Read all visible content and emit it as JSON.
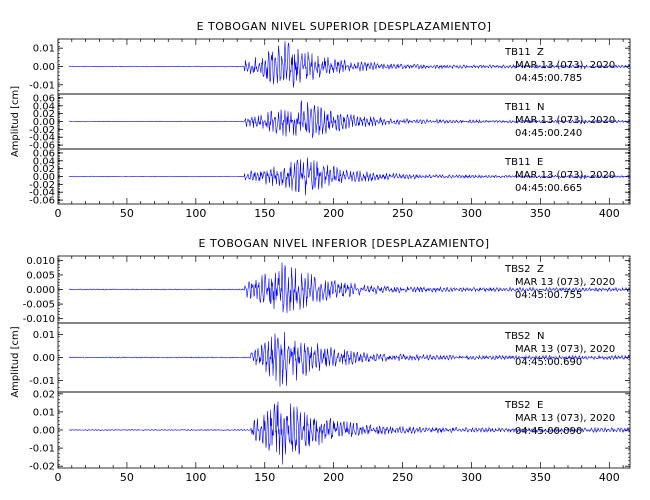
{
  "chart_data": [
    {
      "type": "line",
      "title": "E TOBOGAN NIVEL SUPERIOR [DESPLAZAMIENTO]",
      "ylabel": "Amplitud [cm]",
      "xlim": [
        0,
        415
      ],
      "xticks": [
        0,
        50,
        100,
        150,
        200,
        250,
        300,
        350,
        400
      ],
      "line_color": "#0000ff",
      "traces": [
        {
          "station": "TB11",
          "component": "Z",
          "date": "MAR 13 (073), 2020",
          "time": "04:45:00.785",
          "yticks": [
            "0.01",
            "0.00",
            "-0.01"
          ],
          "ylim": [
            -0.015,
            0.015
          ],
          "onset": 135,
          "peak_time": 165,
          "peak_amplitude": 0.014,
          "end": 415
        },
        {
          "station": "TB11",
          "component": "N",
          "date": "MAR 13 (073), 2020",
          "time": "04:45:00.240",
          "yticks": [
            "0.06",
            "0.04",
            "0.02",
            "0.00",
            "-0.02",
            "-0.04",
            "-0.06"
          ],
          "ylim": [
            -0.07,
            0.07
          ],
          "onset": 135,
          "peak_time": 178,
          "peak_amplitude": 0.055,
          "end": 415
        },
        {
          "station": "TB11",
          "component": "E",
          "date": "MAR 13 (073), 2020",
          "time": "04:45:00.665",
          "yticks": [
            "0.06",
            "0.04",
            "0.02",
            "0.00",
            "-0.02",
            "-0.04",
            "-0.06"
          ],
          "ylim": [
            -0.07,
            0.07
          ],
          "onset": 135,
          "peak_time": 180,
          "peak_amplitude": 0.05,
          "end": 415
        }
      ]
    },
    {
      "type": "line",
      "title": "E TOBOGAN NIVEL INFERIOR [DESPLAZAMIENTO]",
      "ylabel": "Amplitud [cm]",
      "xlim": [
        0,
        415
      ],
      "xticks": [
        0,
        50,
        100,
        150,
        200,
        250,
        300,
        350,
        400
      ],
      "line_color": "#0000ff",
      "traces": [
        {
          "station": "TBS2",
          "component": "Z",
          "date": "MAR 13 (073), 2020",
          "time": "04:45:00.755",
          "yticks": [
            "0.010",
            "0.005",
            "0.000",
            "-0.005",
            "-0.010"
          ],
          "ylim": [
            -0.0115,
            0.0115
          ],
          "onset": 135,
          "peak_time": 163,
          "peak_amplitude": 0.0105,
          "end": 415
        },
        {
          "station": "TBS2",
          "component": "N",
          "date": "MAR 13 (073), 2020",
          "time": "04:45:00.690",
          "yticks": [
            "0.01",
            "0.00",
            "-0.01"
          ],
          "ylim": [
            -0.015,
            0.015
          ],
          "onset": 140,
          "peak_time": 163,
          "peak_amplitude": 0.014,
          "end": 415
        },
        {
          "station": "TBS2",
          "component": "E",
          "date": "MAR 13 (073), 2020",
          "time": "04:45:00.090",
          "yticks": [
            "0.02",
            "0.01",
            "0.00",
            "-0.01",
            "-0.02"
          ],
          "ylim": [
            -0.021,
            0.021
          ],
          "onset": 140,
          "peak_time": 163,
          "peak_amplitude": 0.02,
          "end": 415
        }
      ]
    }
  ]
}
